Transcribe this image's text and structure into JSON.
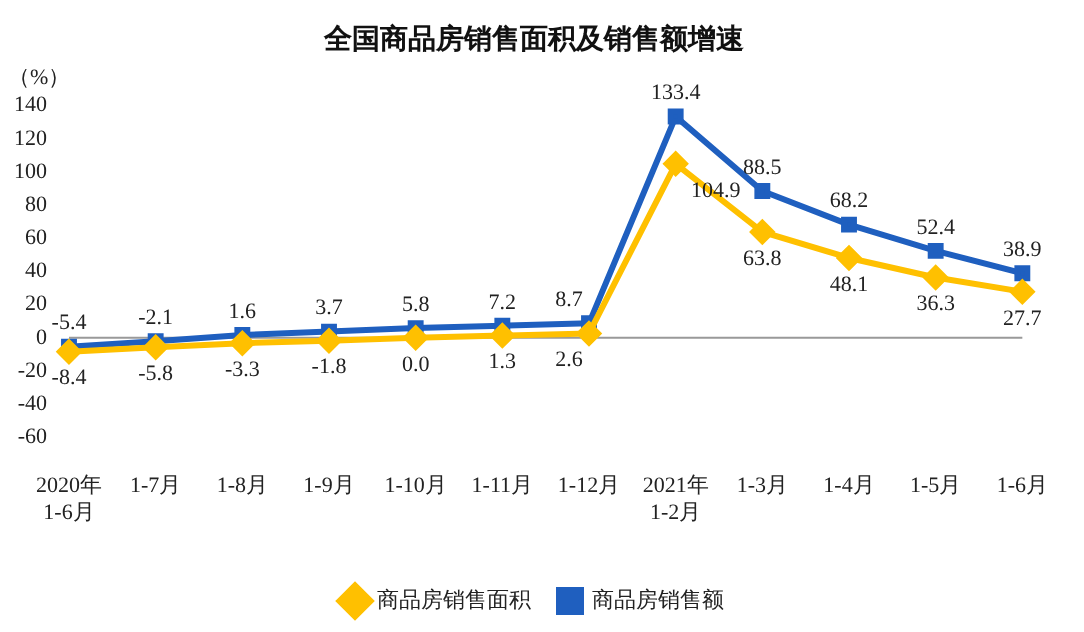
{
  "chart_data": {
    "type": "line",
    "title": "全国商品房销售面积及销售额增速",
    "ylabel": "（%）",
    "categories": [
      "2020年\n1-6月",
      "1-7月",
      "1-8月",
      "1-9月",
      "1-10月",
      "1-11月",
      "1-12月",
      "2021年\n1-2月",
      "1-3月",
      "1-4月",
      "1-5月",
      "1-6月"
    ],
    "series": [
      {
        "name": "商品房销售面积",
        "color": "#ffc000",
        "marker": "diamond",
        "values": [
          -8.4,
          -5.8,
          -3.3,
          -1.8,
          0.0,
          1.3,
          2.6,
          104.9,
          63.8,
          48.1,
          36.3,
          27.7
        ],
        "value_labels": [
          "-8.4",
          "-5.8",
          "-3.3",
          "-1.8",
          "0.0",
          "1.3",
          "2.6",
          "104.9",
          "63.8",
          "48.1",
          "36.3",
          "27.7"
        ]
      },
      {
        "name": "商品房销售额",
        "color": "#1f5fbf",
        "marker": "square",
        "values": [
          -5.4,
          -2.1,
          1.6,
          3.7,
          5.8,
          7.2,
          8.7,
          133.4,
          88.5,
          68.2,
          52.4,
          38.9
        ],
        "value_labels": [
          "-5.4",
          "-2.1",
          "1.6",
          "3.7",
          "5.8",
          "7.2",
          "8.7",
          "133.4",
          "88.5",
          "68.2",
          "52.4",
          "38.9"
        ]
      }
    ],
    "ylim": [
      -60,
      140
    ],
    "yticks": [
      -60,
      -40,
      -20,
      0,
      20,
      40,
      60,
      80,
      100,
      120,
      140
    ],
    "ref_lines": [
      {
        "axis": "y",
        "value": 0,
        "color": "#999999"
      }
    ],
    "legend": "bottom",
    "line_style": "solid"
  }
}
